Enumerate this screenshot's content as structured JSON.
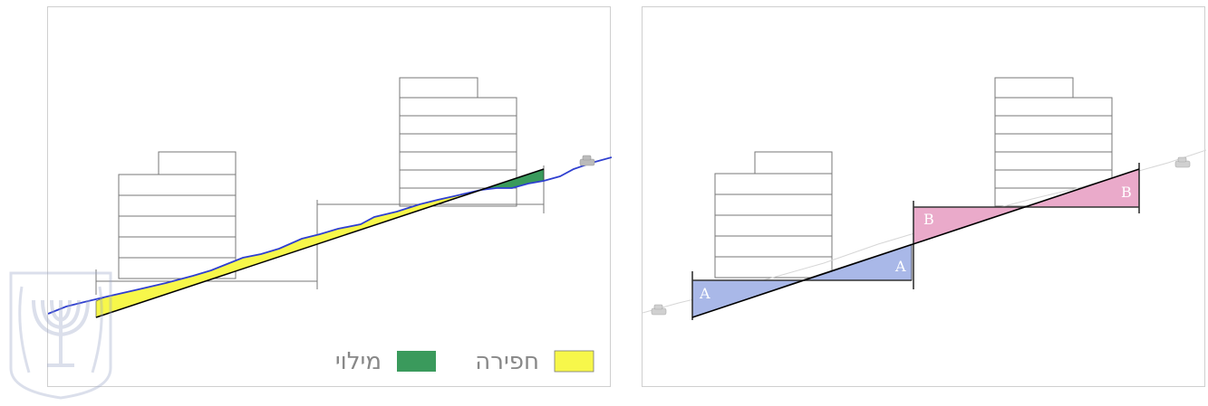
{
  "left_diagram": {
    "legend": [
      {
        "label": "מילוי",
        "color": "#3a9a5c",
        "icon": "fill-swatch"
      },
      {
        "label": "חפירה",
        "color": "#f7f74a",
        "icon": "excavation-swatch"
      }
    ],
    "colors": {
      "terrain_line": "#2f3fd0",
      "road_line": "#000000",
      "excavation": "#f7f74a",
      "fill": "#3a9a5c"
    }
  },
  "right_diagram": {
    "zone_labels": {
      "a": "A",
      "b": "B"
    },
    "colors": {
      "zone_a": "#a9b8e8",
      "zone_b": "#eaaaca",
      "road_line": "#000000"
    }
  },
  "watermark": {
    "icon": "state-emblem-menorah"
  }
}
